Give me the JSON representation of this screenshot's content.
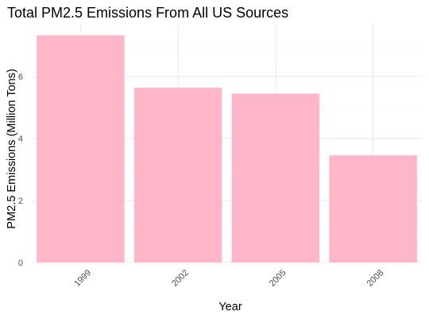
{
  "chart_data": {
    "type": "bar",
    "title": "Total PM2.5 Emissions From All US Sources",
    "xlabel": "Year",
    "ylabel": "PM2.5 Emissions (Million Tons)",
    "categories": [
      "1999",
      "2002",
      "2005",
      "2008"
    ],
    "values": [
      7.33,
      5.64,
      5.45,
      3.46
    ],
    "yticks": [
      0,
      2,
      4,
      6
    ],
    "ylim": [
      0,
      7.7
    ],
    "bar_color": "#FFB6C8",
    "grid": true,
    "legend": "none"
  }
}
